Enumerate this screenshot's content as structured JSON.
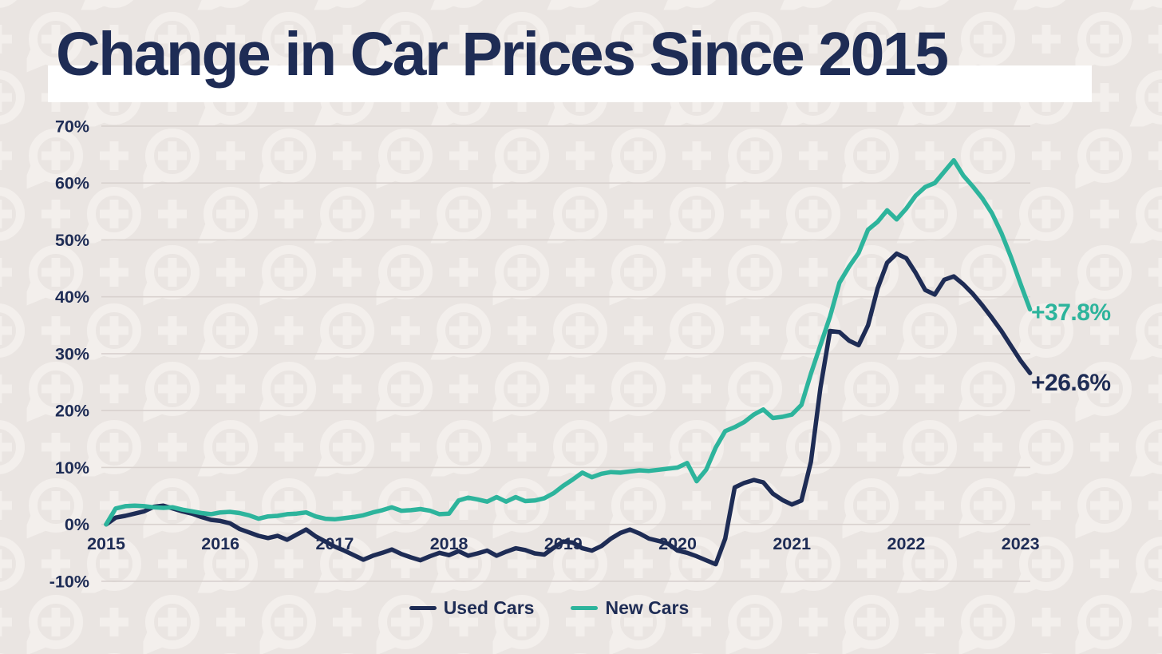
{
  "title": "Change in Car Prices Since 2015",
  "colors": {
    "background": "#eae5e2",
    "pattern": "#f3efec",
    "title_bg": "#ffffff",
    "navy": "#1e2c55",
    "teal": "#2db49c",
    "gridline": "#d8d1ce"
  },
  "chart_data": {
    "type": "line",
    "title": "Change in Car Prices Since 2015",
    "x_unit": "month",
    "x_start": "2015-01",
    "x_end": "2023-02",
    "ylim": [
      -10,
      70
    ],
    "grid": "horizontal-only",
    "legend_position": "bottom-center",
    "y_tick_values": [
      70,
      60,
      50,
      40,
      30,
      20,
      10,
      0,
      -10
    ],
    "y_tick_labels": [
      "70%",
      "60%",
      "50%",
      "40%",
      "30%",
      "20%",
      "10%",
      "0%",
      "-10%"
    ],
    "x_tick_month_index": [
      0,
      12,
      24,
      36,
      48,
      60,
      72,
      84,
      96
    ],
    "x_tick_labels": [
      "2015",
      "2016",
      "2017",
      "2018",
      "2019",
      "2020",
      "2021",
      "2022",
      "2023"
    ],
    "series": [
      {
        "name": "Used Cars",
        "color": "#1e2c55",
        "end_label": "+26.6%",
        "values": [
          0.0,
          1.2,
          1.5,
          1.9,
          2.3,
          3.1,
          3.3,
          2.8,
          2.3,
          1.9,
          1.3,
          0.8,
          0.6,
          0.2,
          -0.8,
          -1.4,
          -2.0,
          -2.4,
          -2.0,
          -2.7,
          -1.8,
          -0.9,
          -2.1,
          -3.0,
          -3.9,
          -4.6,
          -5.4,
          -6.2,
          -5.5,
          -5.0,
          -4.4,
          -5.2,
          -5.8,
          -6.3,
          -5.6,
          -5.0,
          -5.4,
          -4.7,
          -5.5,
          -5.1,
          -4.6,
          -5.5,
          -4.8,
          -4.2,
          -4.5,
          -5.1,
          -5.3,
          -4.1,
          -3.0,
          -3.2,
          -4.2,
          -4.6,
          -3.8,
          -2.5,
          -1.5,
          -0.9,
          -1.6,
          -2.5,
          -2.9,
          -3.4,
          -4.6,
          -5.0,
          -5.6,
          -6.3,
          -7.0,
          -2.5,
          6.5,
          7.3,
          7.8,
          7.4,
          5.4,
          4.3,
          3.5,
          4.2,
          11.0,
          24.0,
          34.0,
          33.8,
          32.3,
          31.5,
          35.0,
          41.5,
          46.0,
          47.6,
          46.8,
          44.2,
          41.2,
          40.4,
          43.0,
          43.6,
          42.2,
          40.5,
          38.5,
          36.3,
          34.0,
          31.4,
          28.8,
          26.6
        ]
      },
      {
        "name": "New Cars",
        "color": "#2db49c",
        "end_label": "+37.8%",
        "values": [
          0.0,
          2.8,
          3.2,
          3.3,
          3.2,
          3.0,
          2.9,
          3.0,
          2.6,
          2.3,
          2.0,
          1.8,
          2.1,
          2.2,
          2.0,
          1.6,
          1.0,
          1.4,
          1.5,
          1.8,
          1.9,
          2.1,
          1.4,
          1.0,
          0.9,
          1.1,
          1.3,
          1.6,
          2.1,
          2.5,
          3.0,
          2.4,
          2.5,
          2.7,
          2.4,
          1.8,
          1.9,
          4.2,
          4.7,
          4.4,
          4.0,
          4.8,
          4.0,
          4.8,
          4.1,
          4.2,
          4.6,
          5.5,
          6.8,
          7.9,
          9.1,
          8.3,
          8.9,
          9.2,
          9.1,
          9.3,
          9.5,
          9.4,
          9.6,
          9.8,
          10.0,
          10.8,
          7.6,
          9.6,
          13.5,
          16.4,
          17.1,
          18.0,
          19.3,
          20.2,
          18.7,
          18.9,
          19.3,
          21.0,
          26.5,
          31.5,
          36.5,
          42.5,
          45.3,
          47.7,
          51.8,
          53.2,
          55.2,
          53.6,
          55.5,
          57.8,
          59.3,
          60.0,
          62.0,
          64.0,
          61.3,
          59.4,
          57.3,
          54.7,
          51.2,
          47.0,
          42.3,
          37.8
        ]
      }
    ]
  },
  "legend": {
    "items": [
      {
        "label": "Used Cars"
      },
      {
        "label": "New Cars"
      }
    ]
  }
}
